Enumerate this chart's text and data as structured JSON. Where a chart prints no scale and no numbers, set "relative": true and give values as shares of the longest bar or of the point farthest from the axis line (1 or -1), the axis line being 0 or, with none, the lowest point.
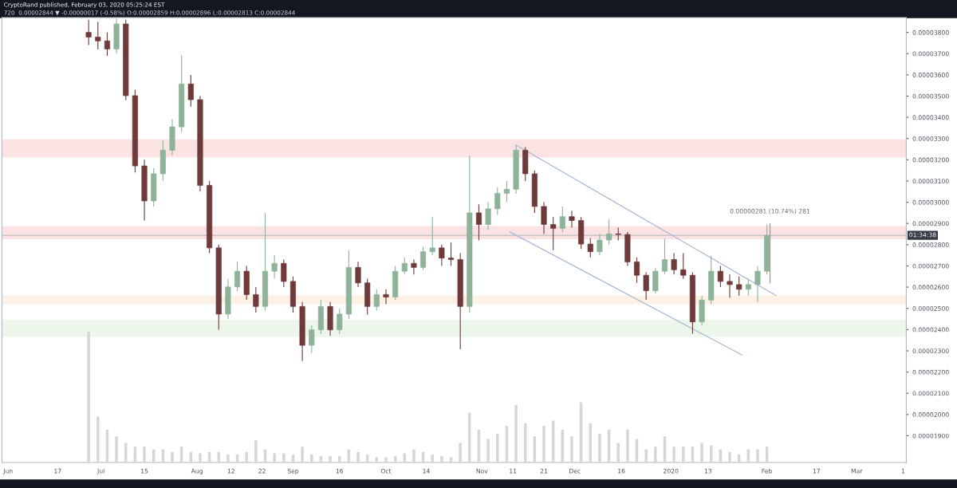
{
  "chart_data": [
    {
      "type": "candlestick",
      "title": "CryptoRand published, February 03, 2020 05:25:24 EST",
      "subtitle": "720  0.00002844 ▼ -0.00000017 (-0.58%) O:0.00002859 H:0.00002896 L:0.00002813 C:0.00002844",
      "x": [
        "2019-06-27",
        "2019-06-30",
        "2019-07-03",
        "2019-07-06",
        "2019-07-09",
        "2019-07-12",
        "2019-07-15",
        "2019-07-18",
        "2019-07-21",
        "2019-07-24",
        "2019-07-27",
        "2019-07-30",
        "2019-08-02",
        "2019-08-05",
        "2019-08-08",
        "2019-08-11",
        "2019-08-14",
        "2019-08-17",
        "2019-08-20",
        "2019-08-23",
        "2019-08-26",
        "2019-08-29",
        "2019-09-01",
        "2019-09-04",
        "2019-09-07",
        "2019-09-10",
        "2019-09-13",
        "2019-09-16",
        "2019-09-19",
        "2019-09-22",
        "2019-09-25",
        "2019-09-28",
        "2019-10-01",
        "2019-10-04",
        "2019-10-07",
        "2019-10-10",
        "2019-10-13",
        "2019-10-16",
        "2019-10-19",
        "2019-10-22",
        "2019-10-25",
        "2019-10-28",
        "2019-10-31",
        "2019-11-03",
        "2019-11-06",
        "2019-11-09",
        "2019-11-12",
        "2019-11-15",
        "2019-11-18",
        "2019-11-21",
        "2019-11-24",
        "2019-11-27",
        "2019-11-30",
        "2019-12-03",
        "2019-12-06",
        "2019-12-09",
        "2019-12-12",
        "2019-12-15",
        "2019-12-18",
        "2019-12-21",
        "2019-12-24",
        "2019-12-27",
        "2019-12-30",
        "2020-01-02",
        "2020-01-05",
        "2020-01-08",
        "2020-01-11",
        "2020-01-14",
        "2020-01-17",
        "2020-01-20",
        "2020-01-23",
        "2020-01-26",
        "2020-01-29",
        "2020-02-01"
      ],
      "ohlc": [
        [
          3.8e-05,
          3.86e-05,
          3.74e-05,
          3.778e-05
        ],
        [
          3.778e-05,
          3.85e-05,
          3.72e-05,
          3.76e-05
        ],
        [
          3.76e-05,
          3.8e-05,
          3.69e-05,
          3.722e-05
        ],
        [
          3.722e-05,
          3.865e-05,
          3.7e-05,
          3.84e-05
        ],
        [
          3.84e-05,
          3.86e-05,
          3.48e-05,
          3.502e-05
        ],
        [
          3.502e-05,
          3.53e-05,
          3.14e-05,
          3.171e-05
        ],
        [
          3.171e-05,
          3.2e-05,
          2.914e-05,
          3.006e-05
        ],
        [
          3.006e-05,
          3.16e-05,
          2.98e-05,
          3.134e-05
        ],
        [
          3.134e-05,
          3.29e-05,
          3.1e-05,
          3.245e-05
        ],
        [
          3.245e-05,
          3.39e-05,
          3.22e-05,
          3.355e-05
        ],
        [
          3.355e-05,
          3.693e-05,
          3.33e-05,
          3.557e-05
        ],
        [
          3.557e-05,
          3.6e-05,
          3.45e-05,
          3.483e-05
        ],
        [
          3.483e-05,
          3.5e-05,
          3.05e-05,
          3.079e-05
        ],
        [
          3.079e-05,
          3.1e-05,
          2.76e-05,
          2.785e-05
        ],
        [
          2.785e-05,
          2.8e-05,
          2.399e-05,
          2.473e-05
        ],
        [
          2.473e-05,
          2.64e-05,
          2.45e-05,
          2.601e-05
        ],
        [
          2.601e-05,
          2.72e-05,
          2.58e-05,
          2.675e-05
        ],
        [
          2.675e-05,
          2.7e-05,
          2.54e-05,
          2.565e-05
        ],
        [
          2.565e-05,
          2.6e-05,
          2.48e-05,
          2.509e-05
        ],
        [
          2.509e-05,
          2.95e-05,
          2.49e-05,
          2.675e-05
        ],
        [
          2.675e-05,
          2.75e-05,
          2.64e-05,
          2.712e-05
        ],
        [
          2.712e-05,
          2.73e-05,
          2.6e-05,
          2.627e-05
        ],
        [
          2.627e-05,
          2.65e-05,
          2.48e-05,
          2.509e-05
        ],
        [
          2.509e-05,
          2.53e-05,
          2.252e-05,
          2.326e-05
        ],
        [
          2.326e-05,
          2.42e-05,
          2.29e-05,
          2.399e-05
        ],
        [
          2.399e-05,
          2.54e-05,
          2.38e-05,
          2.509e-05
        ],
        [
          2.509e-05,
          2.53e-05,
          2.37e-05,
          2.399e-05
        ],
        [
          2.399e-05,
          2.5e-05,
          2.38e-05,
          2.473e-05
        ],
        [
          2.473e-05,
          2.774e-05,
          2.45e-05,
          2.693e-05
        ],
        [
          2.693e-05,
          2.72e-05,
          2.6e-05,
          2.62e-05
        ],
        [
          2.62e-05,
          2.64e-05,
          2.47e-05,
          2.509e-05
        ],
        [
          2.509e-05,
          2.59e-05,
          2.49e-05,
          2.565e-05
        ],
        [
          2.565e-05,
          2.59e-05,
          2.52e-05,
          2.553e-05
        ],
        [
          2.553e-05,
          2.7e-05,
          2.54e-05,
          2.675e-05
        ],
        [
          2.675e-05,
          2.74e-05,
          2.66e-05,
          2.712e-05
        ],
        [
          2.712e-05,
          2.73e-05,
          2.66e-05,
          2.693e-05
        ],
        [
          2.693e-05,
          2.79e-05,
          2.68e-05,
          2.767e-05
        ],
        [
          2.767e-05,
          2.932e-05,
          2.75e-05,
          2.785e-05
        ],
        [
          2.785e-05,
          2.8e-05,
          2.7e-05,
          2.737e-05
        ],
        [
          2.737e-05,
          2.81e-05,
          2.7e-05,
          2.73e-05
        ],
        [
          2.73e-05,
          2.76e-05,
          2.307e-05,
          2.509e-05
        ],
        [
          2.509e-05,
          3.219e-05,
          2.48e-05,
          2.95e-05
        ],
        [
          2.95e-05,
          2.99e-05,
          2.82e-05,
          2.895e-05
        ],
        [
          2.895e-05,
          3e-05,
          2.87e-05,
          2.969e-05
        ],
        [
          2.969e-05,
          3.07e-05,
          2.94e-05,
          3.042e-05
        ],
        [
          3.042e-05,
          3.1e-05,
          3e-05,
          3.061e-05
        ],
        [
          3.061e-05,
          3.27e-05,
          3.04e-05,
          3.245e-05
        ],
        [
          3.245e-05,
          3.26e-05,
          3.1e-05,
          3.134e-05
        ],
        [
          3.134e-05,
          3.15e-05,
          2.95e-05,
          2.98e-05
        ],
        [
          2.98e-05,
          3e-05,
          2.85e-05,
          2.895e-05
        ],
        [
          2.895e-05,
          2.93e-05,
          2.774e-05,
          2.877e-05
        ],
        [
          2.877e-05,
          2.98e-05,
          2.86e-05,
          2.932e-05
        ],
        [
          2.932e-05,
          2.96e-05,
          2.88e-05,
          2.914e-05
        ],
        [
          2.914e-05,
          2.93e-05,
          2.78e-05,
          2.803e-05
        ],
        [
          2.803e-05,
          2.83e-05,
          2.74e-05,
          2.767e-05
        ],
        [
          2.767e-05,
          2.85e-05,
          2.75e-05,
          2.822e-05
        ],
        [
          2.822e-05,
          2.921e-05,
          2.8e-05,
          2.851e-05
        ],
        [
          2.851e-05,
          2.88e-05,
          2.82e-05,
          2.848e-05
        ],
        [
          2.848e-05,
          2.86e-05,
          2.7e-05,
          2.719e-05
        ],
        [
          2.719e-05,
          2.74e-05,
          2.62e-05,
          2.656e-05
        ],
        [
          2.656e-05,
          2.67e-05,
          2.54e-05,
          2.583e-05
        ],
        [
          2.583e-05,
          2.69e-05,
          2.57e-05,
          2.675e-05
        ],
        [
          2.675e-05,
          2.829e-05,
          2.66e-05,
          2.73e-05
        ],
        [
          2.73e-05,
          2.76e-05,
          2.66e-05,
          2.682e-05
        ],
        [
          2.682e-05,
          2.76e-05,
          2.64e-05,
          2.656e-05
        ],
        [
          2.656e-05,
          2.67e-05,
          2.381e-05,
          2.436e-05
        ],
        [
          2.436e-05,
          2.56e-05,
          2.42e-05,
          2.539e-05
        ],
        [
          2.539e-05,
          2.748e-05,
          2.52e-05,
          2.675e-05
        ],
        [
          2.675e-05,
          2.7e-05,
          2.6e-05,
          2.627e-05
        ],
        [
          2.627e-05,
          2.66e-05,
          2.55e-05,
          2.612e-05
        ],
        [
          2.612e-05,
          2.65e-05,
          2.56e-05,
          2.59e-05
        ],
        [
          2.59e-05,
          2.64e-05,
          2.56e-05,
          2.612e-05
        ],
        [
          2.612e-05,
          2.7e-05,
          2.528e-05,
          2.675e-05
        ],
        [
          2.675e-05,
          2.896e-05,
          2.66e-05,
          2.844e-05
        ]
      ],
      "colors": [
        "#6e3a3a",
        "#6e3a3a",
        "#6e3a3a",
        "#8fb39a",
        "#6e3a3a",
        "#6e3a3a",
        "#6e3a3a",
        "#8fb39a",
        "#8fb39a",
        "#8fb39a",
        "#8fb39a",
        "#6e3a3a",
        "#6e3a3a",
        "#6e3a3a",
        "#6e3a3a",
        "#8fb39a",
        "#8fb39a",
        "#6e3a3a",
        "#6e3a3a",
        "#8fb39a",
        "#8fb39a",
        "#6e3a3a",
        "#6e3a3a",
        "#6e3a3a",
        "#8fb39a",
        "#8fb39a",
        "#6e3a3a",
        "#8fb39a",
        "#8fb39a",
        "#6e3a3a",
        "#6e3a3a",
        "#8fb39a",
        "#6e3a3a",
        "#8fb39a",
        "#8fb39a",
        "#6e3a3a",
        "#8fb39a",
        "#8fb39a",
        "#6e3a3a",
        "#6e3a3a",
        "#6e3a3a",
        "#8fb39a",
        "#6e3a3a",
        "#8fb39a",
        "#8fb39a",
        "#8fb39a",
        "#8fb39a",
        "#6e3a3a",
        "#6e3a3a",
        "#6e3a3a",
        "#6e3a3a",
        "#8fb39a",
        "#6e3a3a",
        "#6e3a3a",
        "#6e3a3a",
        "#8fb39a",
        "#8fb39a",
        "#6e3a3a",
        "#6e3a3a",
        "#6e3a3a",
        "#6e3a3a",
        "#8fb39a",
        "#8fb39a",
        "#6e3a3a",
        "#6e3a3a",
        "#6e3a3a",
        "#8fb39a",
        "#8fb39a",
        "#6e3a3a",
        "#6e3a3a",
        "#6e3a3a",
        "#8fb39a",
        "#8fb39a",
        "#8fb39a"
      ],
      "series": [
        {
          "type": "line",
          "color": "#a8b8d8",
          "x": [
            "2019-11-12",
            "2020-02-04"
          ],
          "values": [
            3.27e-05,
            2.56e-05
          ]
        },
        {
          "type": "line",
          "color": "#a8b8d8",
          "x": [
            "2019-11-10",
            "2020-01-24"
          ],
          "values": [
            2.86e-05,
            2.28e-05
          ]
        },
        {
          "type": "line",
          "color": "#9598a1",
          "x": [
            "2020-02-02",
            "2020-02-02"
          ],
          "values": [
            2.62e-05,
            2.9e-05
          ]
        }
      ],
      "bands": [
        {
          "axis": "y",
          "from": 3.211e-05,
          "to": 3.296e-05,
          "color": "#fbe3e3"
        },
        {
          "axis": "y",
          "from": 2.826e-05,
          "to": 2.888e-05,
          "color": "#fbe3e3"
        },
        {
          "axis": "y",
          "from": 2.52e-05,
          "to": 2.561e-05,
          "color": "#fdf1e6"
        },
        {
          "axis": "y",
          "from": 2.366e-05,
          "to": 2.447e-05,
          "color": "#edf6ea"
        }
      ],
      "ref_lines": [
        {
          "axis": "y",
          "value": 2.844e-05,
          "color": "#b0b3bb"
        }
      ],
      "annotations": [
        {
          "text": "0.00000281 (10.74%) 281",
          "x": "2020-02-02",
          "y": 2.9e-05
        },
        "01:34:38"
      ],
      "xlim": [
        "2019-05-30",
        "2020-03-17"
      ],
      "xticks": [
        {
          "value": "2019-06-01",
          "label": "Jun"
        },
        {
          "value": "2019-06-17",
          "label": "17"
        },
        {
          "value": "2019-07-01",
          "label": "Jul"
        },
        {
          "value": "2019-07-15",
          "label": "15"
        },
        {
          "value": "2019-08-01",
          "label": "Aug"
        },
        {
          "value": "2019-08-12",
          "label": "12"
        },
        {
          "value": "2019-08-22",
          "label": "22"
        },
        {
          "value": "2019-09-01",
          "label": "Sep"
        },
        {
          "value": "2019-09-16",
          "label": "16"
        },
        {
          "value": "2019-10-01",
          "label": "Oct"
        },
        {
          "value": "2019-10-14",
          "label": "14"
        },
        {
          "value": "2019-11-01",
          "label": "Nov"
        },
        {
          "value": "2019-11-11",
          "label": "11"
        },
        {
          "value": "2019-11-21",
          "label": "21"
        },
        {
          "value": "2019-12-01",
          "label": "Dec"
        },
        {
          "value": "2019-12-16",
          "label": "16"
        },
        {
          "value": "2020-01-01",
          "label": "2020"
        },
        {
          "value": "2020-01-13",
          "label": "13"
        },
        {
          "value": "2020-02-01",
          "label": "Feb"
        },
        {
          "value": "2020-02-17",
          "label": "17"
        },
        {
          "value": "2020-03-01",
          "label": "Mar"
        },
        {
          "value": "2020-03-16",
          "label": "1"
        }
      ],
      "ylim": [
        1.774e-05,
        3.87e-05
      ],
      "yticks": [
        {
          "value": 1.9e-05,
          "label": "0.00001900"
        },
        {
          "value": 2e-05,
          "label": "0.00002000"
        },
        {
          "value": 2.1e-05,
          "label": "0.00002100"
        },
        {
          "value": 2.2e-05,
          "label": "0.00002200"
        },
        {
          "value": 2.3e-05,
          "label": "0.00002300"
        },
        {
          "value": 2.4e-05,
          "label": "0.00002400"
        },
        {
          "value": 2.5e-05,
          "label": "0.00002500"
        },
        {
          "value": 2.6e-05,
          "label": "0.00002600"
        },
        {
          "value": 2.7e-05,
          "label": "0.00002700"
        },
        {
          "value": 2.8e-05,
          "label": "0.00002800"
        },
        {
          "value": 2.9e-05,
          "label": "0.00002900"
        },
        {
          "value": 3e-05,
          "label": "0.00003000"
        },
        {
          "value": 3.1e-05,
          "label": "0.00003100"
        },
        {
          "value": 3.2e-05,
          "label": "0.00003200"
        },
        {
          "value": 3.3e-05,
          "label": "0.00003300"
        },
        {
          "value": 3.4e-05,
          "label": "0.00003400"
        },
        {
          "value": 3.5e-05,
          "label": "0.00003500"
        },
        {
          "value": 3.6e-05,
          "label": "0.00003600"
        },
        {
          "value": 3.7e-05,
          "label": "0.00003700"
        },
        {
          "value": 3.8e-05,
          "label": "0.00003800"
        }
      ],
      "grid": false,
      "legend": false
    },
    {
      "type": "bar",
      "relative": true,
      "tick_labels": false,
      "color": "#d6d6d6",
      "xlim": [
        "2019-05-30",
        "2020-03-17"
      ],
      "x": [
        "2019-06-27",
        "2019-06-30",
        "2019-07-03",
        "2019-07-06",
        "2019-07-09",
        "2019-07-12",
        "2019-07-15",
        "2019-07-18",
        "2019-07-21",
        "2019-07-24",
        "2019-07-27",
        "2019-07-30",
        "2019-08-02",
        "2019-08-05",
        "2019-08-08",
        "2019-08-11",
        "2019-08-14",
        "2019-08-17",
        "2019-08-20",
        "2019-08-23",
        "2019-08-26",
        "2019-08-29",
        "2019-09-01",
        "2019-09-04",
        "2019-09-07",
        "2019-09-10",
        "2019-09-13",
        "2019-09-16",
        "2019-09-19",
        "2019-09-22",
        "2019-09-25",
        "2019-09-28",
        "2019-10-01",
        "2019-10-04",
        "2019-10-07",
        "2019-10-10",
        "2019-10-13",
        "2019-10-16",
        "2019-10-19",
        "2019-10-22",
        "2019-10-25",
        "2019-10-28",
        "2019-10-31",
        "2019-11-03",
        "2019-11-06",
        "2019-11-09",
        "2019-11-12",
        "2019-11-15",
        "2019-11-18",
        "2019-11-21",
        "2019-11-24",
        "2019-11-27",
        "2019-11-30",
        "2019-12-03",
        "2019-12-06",
        "2019-12-09",
        "2019-12-12",
        "2019-12-15",
        "2019-12-18",
        "2019-12-21",
        "2019-12-24",
        "2019-12-27",
        "2019-12-30",
        "2020-01-02",
        "2020-01-05",
        "2020-01-08",
        "2020-01-11",
        "2020-01-14",
        "2020-01-17",
        "2020-01-20",
        "2020-01-23",
        "2020-01-26",
        "2020-01-29",
        "2020-02-01"
      ],
      "values": [
        1.0,
        0.35,
        0.25,
        0.2,
        0.15,
        0.12,
        0.12,
        0.1,
        0.1,
        0.08,
        0.12,
        0.08,
        0.07,
        0.08,
        0.08,
        0.06,
        0.06,
        0.08,
        0.17,
        0.1,
        0.07,
        0.07,
        0.06,
        0.12,
        0.06,
        0.05,
        0.05,
        0.05,
        0.1,
        0.08,
        0.06,
        0.04,
        0.04,
        0.05,
        0.07,
        0.1,
        0.08,
        0.06,
        0.05,
        0.04,
        0.15,
        0.38,
        0.25,
        0.18,
        0.22,
        0.28,
        0.44,
        0.3,
        0.2,
        0.28,
        0.32,
        0.25,
        0.2,
        0.46,
        0.3,
        0.22,
        0.25,
        0.15,
        0.25,
        0.18,
        0.1,
        0.12,
        0.2,
        0.12,
        0.12,
        0.12,
        0.15,
        0.13,
        0.1,
        0.08,
        0.06,
        0.1,
        0.1,
        0.12
      ]
    }
  ]
}
